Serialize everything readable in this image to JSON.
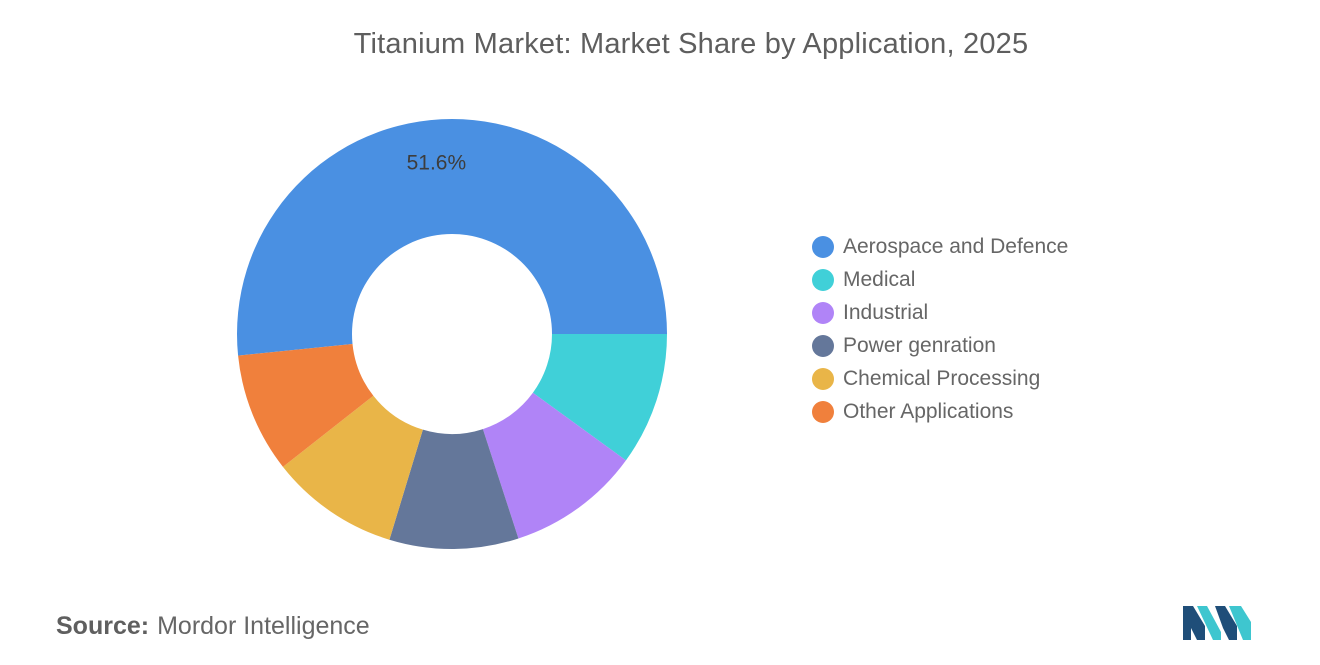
{
  "chart_data": {
    "type": "pie",
    "title": "Titanium Market: Market Share by Application, 2025",
    "categories": [
      "Aerospace and Defence",
      "Medical",
      "Industrial",
      "Power genration",
      "Chemical Processing",
      "Other Applications"
    ],
    "values": [
      51.6,
      10.0,
      10.0,
      9.7,
      9.7,
      9.0
    ],
    "data_labels": [
      "51.6%",
      "",
      "",
      "",
      "",
      ""
    ],
    "colors": [
      "#4a90e2",
      "#40d0d8",
      "#b084f7",
      "#64779a",
      "#e9b548",
      "#f0803c"
    ],
    "donut": true,
    "legend_position": "right"
  },
  "source": {
    "label": "Source:",
    "text": "Mordor Intelligence"
  },
  "logo": {
    "icon": "mordor-intelligence-logo",
    "colors": [
      "#1f4e79",
      "#3ec6cf"
    ]
  }
}
